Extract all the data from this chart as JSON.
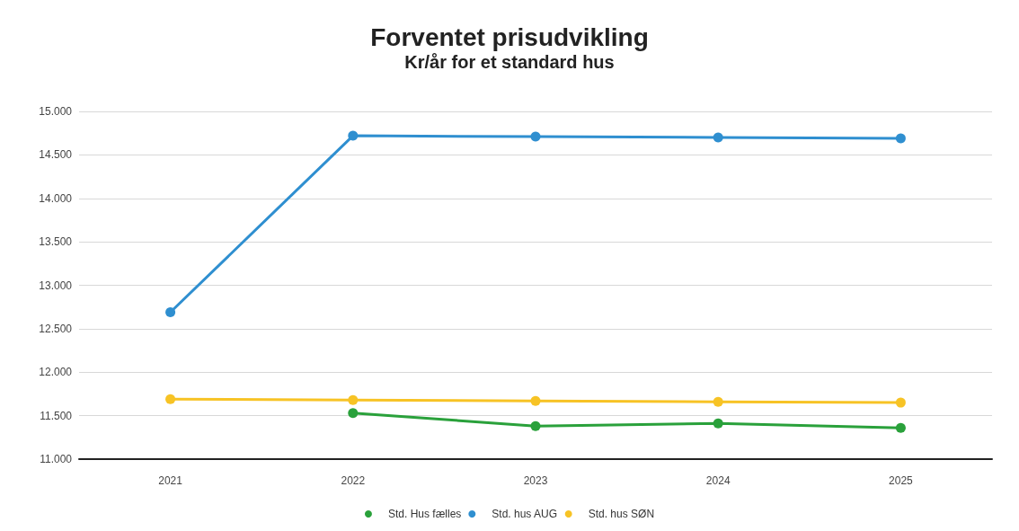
{
  "chart_data": {
    "type": "line",
    "title": "Forventet prisudvikling",
    "subtitle": "Kr/år for et standard hus",
    "categories": [
      "2021",
      "2022",
      "2023",
      "2024",
      "2025"
    ],
    "series": [
      {
        "name": "Std. Hus fælles",
        "color": "#2aa13b",
        "values": [
          null,
          11530,
          11380,
          11410,
          11360
        ]
      },
      {
        "name": "Std. hus AUG",
        "color": "#2f8fd0",
        "values": [
          12690,
          14720,
          14710,
          14700,
          14690
        ]
      },
      {
        "name": "Std. hus SØN",
        "color": "#f7c325",
        "values": [
          11690,
          11680,
          11670,
          11660,
          11650
        ]
      }
    ],
    "ylim": [
      11000,
      15000
    ],
    "yticks": [
      {
        "value": 11000,
        "label": "11.000"
      },
      {
        "value": 11500,
        "label": "11.500"
      },
      {
        "value": 12000,
        "label": "12.000"
      },
      {
        "value": 12500,
        "label": "12.500"
      },
      {
        "value": 13000,
        "label": "13.000"
      },
      {
        "value": 13500,
        "label": "13.500"
      },
      {
        "value": 14000,
        "label": "14.000"
      },
      {
        "value": 14500,
        "label": "14.500"
      },
      {
        "value": 15000,
        "label": "15.000"
      }
    ],
    "grid": "y",
    "legend": "bottom",
    "marker": "circle",
    "line_style": "solid"
  }
}
